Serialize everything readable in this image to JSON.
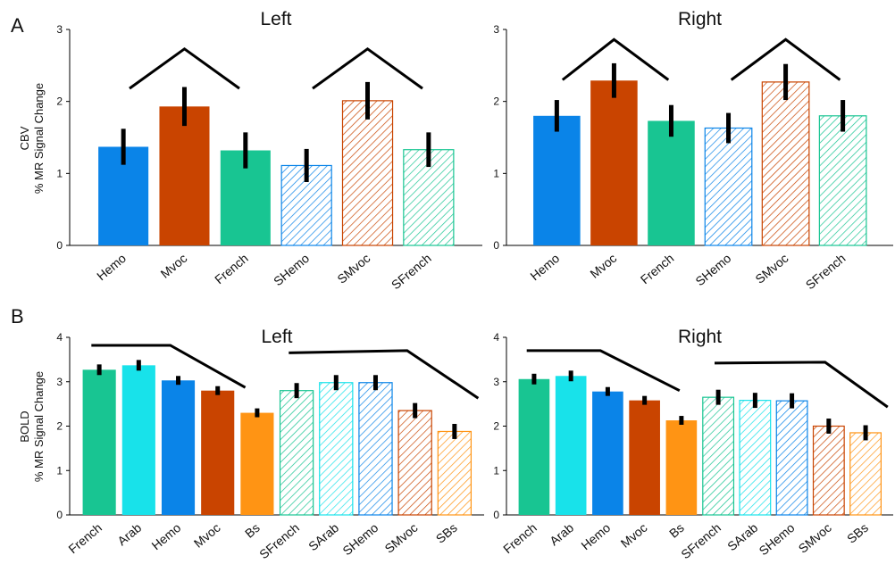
{
  "figure": {
    "row_a": {
      "panel_label": "A",
      "ylabel_top": "CBV",
      "ylabel_bottom": "% MR Signal Change"
    },
    "row_b": {
      "panel_label": "B",
      "ylabel_top": "BOLD",
      "ylabel_bottom": "% MR Signal Change"
    }
  },
  "colors": {
    "blue": "#0a84e8",
    "orange_red": "#c94400",
    "teal": "#18c592",
    "cyan": "#18e2ea",
    "orange": "#ff9414"
  },
  "chart_data": [
    {
      "type": "bar",
      "panel": "A",
      "title": "Left",
      "ylim": [
        0,
        3
      ],
      "yticks": [
        "0",
        "1",
        "2",
        "3"
      ],
      "categories": [
        "Hemo",
        "Mvoc",
        "French",
        "SHemo",
        "SMvoc",
        "SFrench"
      ],
      "values": [
        1.37,
        1.93,
        1.32,
        1.11,
        2.01,
        1.33
      ],
      "errors": [
        0.25,
        0.27,
        0.25,
        0.23,
        0.26,
        0.24
      ],
      "bar_colors": [
        "#0a84e8",
        "#c94400",
        "#18c592",
        "#0a84e8",
        "#c94400",
        "#18c592"
      ],
      "hatched": [
        false,
        false,
        false,
        true,
        true,
        true
      ],
      "trend_lines": [
        [
          0.1,
          2.18,
          1.0,
          2.73,
          1.9,
          2.18
        ],
        [
          3.1,
          2.18,
          4.0,
          2.73,
          4.9,
          2.18
        ]
      ]
    },
    {
      "type": "bar",
      "panel": "A",
      "title": "Right",
      "ylim": [
        0,
        3
      ],
      "yticks": [
        "0",
        "1",
        "2",
        "3"
      ],
      "categories": [
        "Hemo",
        "Mvoc",
        "French",
        "SHemo",
        "SMvoc",
        "SFrench"
      ],
      "values": [
        1.8,
        2.29,
        1.73,
        1.63,
        2.27,
        1.8
      ],
      "errors": [
        0.22,
        0.24,
        0.22,
        0.21,
        0.25,
        0.22
      ],
      "bar_colors": [
        "#0a84e8",
        "#c94400",
        "#18c592",
        "#0a84e8",
        "#c94400",
        "#18c592"
      ],
      "hatched": [
        false,
        false,
        false,
        true,
        true,
        true
      ],
      "trend_lines": [
        [
          0.1,
          2.3,
          1.0,
          2.86,
          1.95,
          2.3
        ],
        [
          3.05,
          2.3,
          4.0,
          2.86,
          4.95,
          2.3
        ]
      ]
    },
    {
      "type": "bar",
      "panel": "B",
      "title": "Left",
      "ylim": [
        0,
        4
      ],
      "yticks": [
        "0",
        "1",
        "2",
        "3",
        "4"
      ],
      "categories": [
        "French",
        "Arab",
        "Hemo",
        "Mvoc",
        "Bs",
        "SFrench",
        "SArab",
        "SHemo",
        "SMvoc",
        "SBs"
      ],
      "values": [
        3.27,
        3.37,
        3.03,
        2.8,
        2.3,
        2.8,
        2.98,
        2.98,
        2.35,
        1.88
      ],
      "errors": [
        0.12,
        0.12,
        0.1,
        0.1,
        0.1,
        0.17,
        0.17,
        0.17,
        0.17,
        0.17
      ],
      "bar_colors": [
        "#18c592",
        "#18e2ea",
        "#0a84e8",
        "#c94400",
        "#ff9414",
        "#18c592",
        "#18e2ea",
        "#0a84e8",
        "#c94400",
        "#ff9414"
      ],
      "hatched": [
        false,
        false,
        false,
        false,
        false,
        true,
        true,
        true,
        true,
        true
      ],
      "trend_lines": [
        [
          -0.2,
          3.82,
          1.8,
          3.82,
          3.7,
          2.87
        ],
        [
          4.8,
          3.65,
          7.8,
          3.7,
          9.6,
          2.63
        ]
      ]
    },
    {
      "type": "bar",
      "panel": "B",
      "title": "Right",
      "ylim": [
        0,
        4
      ],
      "yticks": [
        "0",
        "1",
        "2",
        "3",
        "4"
      ],
      "categories": [
        "French",
        "Arab",
        "Hemo",
        "Mvoc",
        "Bs",
        "SFrench",
        "SArab",
        "SHemo",
        "SMvoc",
        "SBs"
      ],
      "values": [
        3.06,
        3.13,
        2.78,
        2.58,
        2.13,
        2.65,
        2.58,
        2.57,
        2.0,
        1.85
      ],
      "errors": [
        0.12,
        0.12,
        0.1,
        0.1,
        0.1,
        0.17,
        0.17,
        0.17,
        0.17,
        0.17
      ],
      "bar_colors": [
        "#18c592",
        "#18e2ea",
        "#0a84e8",
        "#c94400",
        "#ff9414",
        "#18c592",
        "#18e2ea",
        "#0a84e8",
        "#c94400",
        "#ff9414"
      ],
      "hatched": [
        false,
        false,
        false,
        false,
        false,
        true,
        true,
        true,
        true,
        true
      ],
      "trend_lines": [
        [
          -0.2,
          3.7,
          1.8,
          3.7,
          3.95,
          2.8
        ],
        [
          4.9,
          3.42,
          7.9,
          3.44,
          9.6,
          2.43
        ]
      ]
    }
  ]
}
